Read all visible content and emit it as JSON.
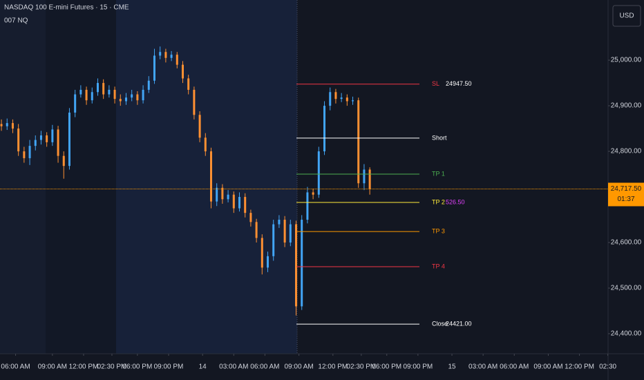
{
  "chart_data": {
    "type": "candlestick",
    "title": "NASDAQ 100 E-mini Futures · 15 · CME",
    "subtitle": "007 NQ",
    "currency": "USD",
    "up_color": "#42a5f5",
    "down_color": "#ff9032",
    "grid": false,
    "x": [
      0,
      2,
      4,
      6,
      8,
      10,
      12,
      14,
      16,
      18,
      20,
      22,
      24,
      26,
      28,
      30,
      32,
      34,
      36,
      38,
      40,
      42,
      44,
      46,
      48,
      50,
      52,
      54,
      56,
      58,
      60,
      62,
      64,
      66,
      68,
      70,
      72,
      74,
      76,
      78,
      80,
      82,
      84,
      86,
      88,
      90,
      92,
      94,
      96,
      98,
      100,
      102,
      104,
      106,
      108,
      110,
      112,
      114,
      116,
      118,
      120,
      122,
      124,
      126,
      128,
      130
    ],
    "open": [
      24860,
      24855,
      24862,
      24850,
      24800,
      24785,
      24812,
      24825,
      24835,
      24820,
      24848,
      24790,
      24768,
      24885,
      24925,
      24935,
      24912,
      24930,
      24950,
      24925,
      24935,
      24915,
      24910,
      24918,
      24925,
      24912,
      24935,
      24955,
      25010,
      25018,
      25005,
      25012,
      24990,
      24960,
      24935,
      24880,
      24830,
      24800,
      24690,
      24720,
      24695,
      24705,
      24675,
      24700,
      24665,
      24645,
      24610,
      24545,
      24570,
      24640,
      24650,
      24600,
      24640,
      24460,
      24650,
      24710,
      24705,
      24800,
      24900,
      24930,
      24915,
      24918,
      24910,
      24912,
      24730,
      24760
    ],
    "high": [
      24870,
      24872,
      24870,
      24860,
      24810,
      24825,
      24835,
      24845,
      24842,
      24858,
      24856,
      24800,
      24895,
      24935,
      24945,
      24942,
      24940,
      24960,
      24958,
      24945,
      24942,
      24925,
      24928,
      24935,
      24932,
      24945,
      24965,
      25025,
      25030,
      25025,
      25020,
      25018,
      24998,
      24968,
      24942,
      24888,
      24840,
      24808,
      24730,
      24728,
      24715,
      24712,
      24710,
      24708,
      24672,
      24652,
      24618,
      24580,
      24650,
      24660,
      24658,
      24650,
      24648,
      24660,
      24722,
      24718,
      24810,
      24910,
      24940,
      24937,
      24928,
      24925,
      24920,
      24918,
      24772,
      24765
    ],
    "low": [
      24845,
      24847,
      24840,
      24790,
      24775,
      24770,
      24802,
      24815,
      24810,
      24812,
      24775,
      24740,
      24760,
      24875,
      24918,
      24902,
      24905,
      24922,
      24915,
      24918,
      24905,
      24900,
      24902,
      24910,
      24902,
      24905,
      24928,
      24948,
      25002,
      24995,
      24998,
      24982,
      24950,
      24925,
      24870,
      24820,
      24790,
      24675,
      24680,
      24685,
      24688,
      24665,
      24668,
      24655,
      24635,
      24600,
      24530,
      24535,
      24560,
      24632,
      24590,
      24592,
      24440,
      24452,
      24642,
      24695,
      24698,
      24792,
      24890,
      24905,
      24908,
      24900,
      24902,
      24720,
      24715,
      24705
    ],
    "close": [
      24855,
      24862,
      24850,
      24800,
      24785,
      24812,
      24825,
      24835,
      24820,
      24848,
      24790,
      24768,
      24885,
      24925,
      24935,
      24912,
      24930,
      24950,
      24925,
      24935,
      24915,
      24910,
      24918,
      24925,
      24912,
      24935,
      24955,
      25010,
      25018,
      25005,
      25012,
      24990,
      24960,
      24935,
      24880,
      24830,
      24800,
      24690,
      24720,
      24695,
      24705,
      24675,
      24700,
      24665,
      24645,
      24610,
      24545,
      24570,
      24640,
      24650,
      24600,
      24640,
      24460,
      24650,
      24710,
      24705,
      24800,
      24900,
      24930,
      24915,
      24918,
      24910,
      24912,
      24730,
      24760,
      24717.5
    ],
    "xlim": [
      -0.5,
      214.1
    ],
    "xticks": [
      {
        "value": 5,
        "label": "06:00 AM"
      },
      {
        "value": 18,
        "label": "09:00 AM"
      },
      {
        "value": 29,
        "label": "12:00 PM"
      },
      {
        "value": 39,
        "label": "02:30 PM"
      },
      {
        "value": 48,
        "label": "06:00 PM"
      },
      {
        "value": 59,
        "label": "09:00 PM"
      },
      {
        "value": 71,
        "label": "14"
      },
      {
        "value": 82,
        "label": "03:00 AM"
      },
      {
        "value": 93,
        "label": "06:00 AM"
      },
      {
        "value": 105,
        "label": "09:00 AM"
      },
      {
        "value": 117,
        "label": "12:00 PM"
      },
      {
        "value": 127,
        "label": "02:30 PM"
      },
      {
        "value": 136,
        "label": "06:00 PM"
      },
      {
        "value": 147,
        "label": "09:00 PM"
      },
      {
        "value": 159,
        "label": "15"
      },
      {
        "value": 170,
        "label": "03:00 AM"
      },
      {
        "value": 181,
        "label": "06:00 AM"
      },
      {
        "value": 193,
        "label": "09:00 AM"
      },
      {
        "value": 204,
        "label": "12:00 PM"
      },
      {
        "value": 214,
        "label": "02:30"
      }
    ],
    "ylim": [
      24356,
      25132
    ],
    "yticks": [
      {
        "value": 24400,
        "label": "24,400.00"
      },
      {
        "value": 24500,
        "label": "24,500.00"
      },
      {
        "value": 24600,
        "label": "24,600.00"
      },
      {
        "value": 24700,
        "label": "24,700.00"
      },
      {
        "value": 24800,
        "label": "24,800.00"
      },
      {
        "value": 24900,
        "label": "24,900.00"
      },
      {
        "value": 25000,
        "label": "25,000.00"
      }
    ],
    "levels": [
      {
        "name": "SL",
        "value": 24947.5,
        "value_label": "24947.50",
        "color": "#f23645"
      },
      {
        "name": "Short",
        "value": 24829,
        "color": "#ffffff"
      },
      {
        "name": "TP 1",
        "value": 24750,
        "color": "#4caf50"
      },
      {
        "name": "TP 2",
        "value": 24688,
        "color": "#ffeb3b",
        "annotation": "526.50"
      },
      {
        "name": "TP 3",
        "value": 24624,
        "color": "#ff9800"
      },
      {
        "name": "TP 4",
        "value": 24547,
        "color": "#f23645"
      },
      {
        "name": "Close",
        "value": 24421,
        "value_label": "24421.00",
        "color": "#ffffff"
      }
    ],
    "last_price": {
      "value": 24717.5,
      "label": "24,717.50",
      "countdown": "01:37",
      "color": "#ff9800"
    }
  }
}
